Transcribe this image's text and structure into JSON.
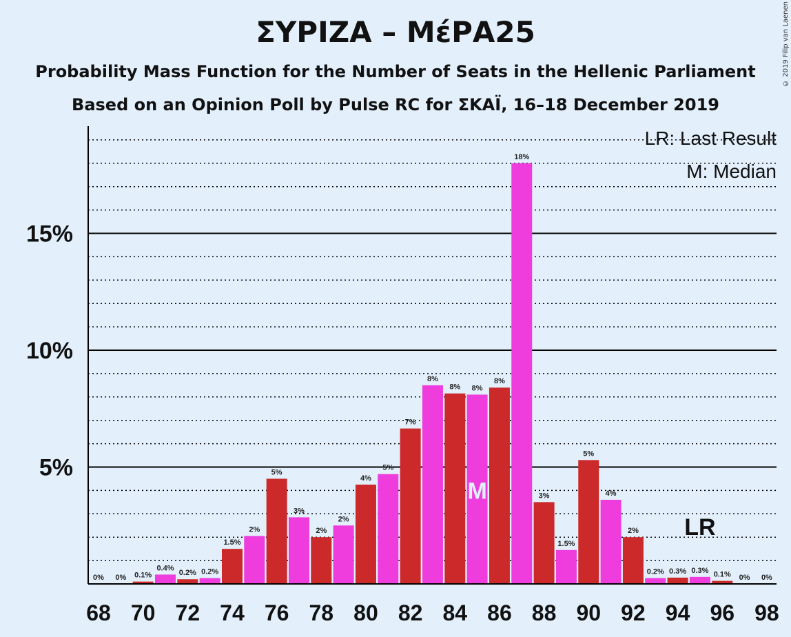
{
  "title": "ΣΥΡΙΖΑ – ΜέΡΑ25",
  "subtitle1": "Probability Mass Function for the Number of Seats in the Hellenic Parliament",
  "subtitle2": "Based on an Opinion Poll by Pulse RC for ΣΚΑΪ, 16–18 December 2019",
  "copyright": "© 2019 Filip van Laenen",
  "legend": {
    "last_result": "LR: Last Result",
    "median": "M: Median"
  },
  "markers": {
    "median_label": "M",
    "median_seat": 85,
    "last_result_label": "LR",
    "last_result_seat": 95
  },
  "colors": {
    "background": "#e3f0fc",
    "bar_even": "#cc2a2a",
    "bar_odd": "#ee3cdd",
    "median_text": "#e3f0fc"
  },
  "chart_data": {
    "type": "bar",
    "x": [
      68,
      69,
      70,
      71,
      72,
      73,
      74,
      75,
      76,
      77,
      78,
      79,
      80,
      81,
      82,
      83,
      84,
      85,
      86,
      87,
      88,
      89,
      90,
      91,
      92,
      93,
      94,
      95,
      96,
      97,
      98
    ],
    "values": [
      0,
      0,
      0.1,
      0.4,
      0.2,
      0.25,
      1.5,
      2.05,
      4.5,
      2.85,
      2.0,
      2.5,
      4.25,
      4.7,
      6.65,
      8.5,
      8.15,
      8.1,
      8.4,
      18.0,
      3.5,
      1.45,
      5.3,
      3.6,
      2.0,
      0.25,
      0.27,
      0.3,
      0.13,
      0,
      0
    ],
    "data_labels": [
      "0%",
      "0%",
      "0.1%",
      "0.4%",
      "0.2%",
      "0.2%",
      "1.5%",
      "2%",
      "5%",
      "3%",
      "2%",
      "2%",
      "4%",
      "5%",
      "7%",
      "8%",
      "8%",
      "8%",
      "8%",
      "18%",
      "3%",
      "1.5%",
      "5%",
      "4%",
      "2%",
      "0.2%",
      "0.3%",
      "0.3%",
      "0.1%",
      "0%",
      "0%"
    ],
    "x_tick_labels": [
      "68",
      "70",
      "72",
      "74",
      "76",
      "78",
      "80",
      "82",
      "84",
      "86",
      "88",
      "90",
      "92",
      "94",
      "96",
      "98"
    ],
    "y_tick_labels": [
      "5%",
      "10%",
      "15%"
    ],
    "y_ticks": [
      5,
      10,
      15
    ],
    "ylim": [
      0,
      19.6
    ],
    "grid": "dotted minor lines every 1%, solid major lines at 5%, 10%, 15%"
  }
}
